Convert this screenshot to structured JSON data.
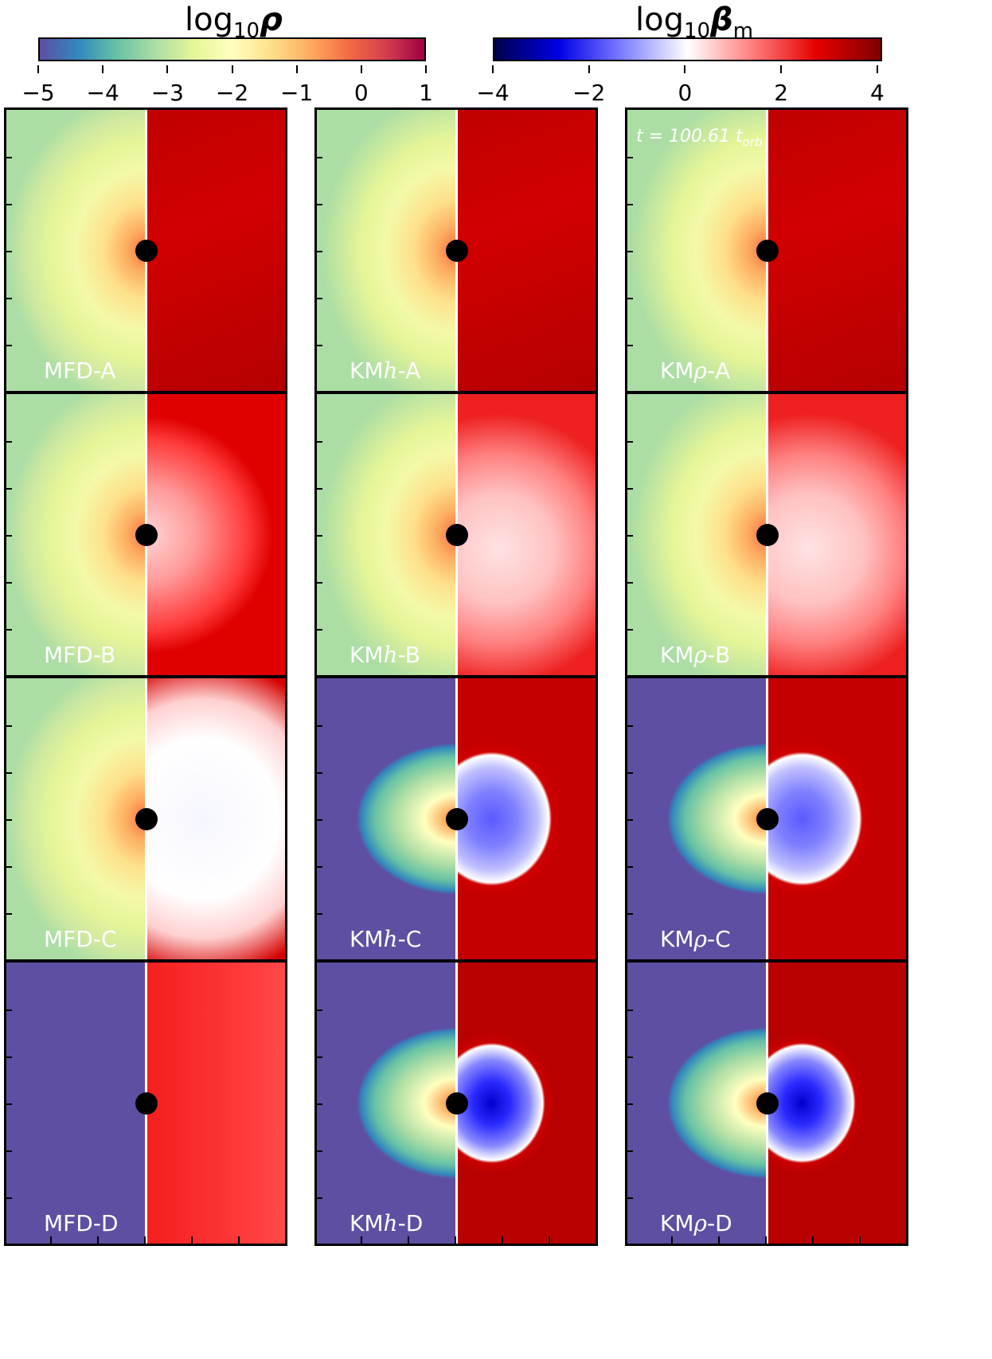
{
  "colorbars": {
    "density": {
      "title_main": "log",
      "title_sub": "10",
      "title_symbol": "ρ",
      "ticks": [
        "−5",
        "−4",
        "−3",
        "−2",
        "−1",
        "0",
        "1"
      ],
      "tick_values": [
        -5,
        -4,
        -3,
        -2,
        -1,
        0,
        1
      ],
      "range": [
        -5,
        1
      ],
      "colormap": "Spectral_r",
      "colors": [
        "#5e4fa2",
        "#3288bd",
        "#66c2a5",
        "#abdda4",
        "#e6f598",
        "#ffffbf",
        "#fee08b",
        "#fdae61",
        "#f46d43",
        "#d53e4f",
        "#9e0142"
      ]
    },
    "beta": {
      "title_main": "log",
      "title_sub": "10",
      "title_symbol": "β",
      "title_symbol_sub": "m",
      "ticks": [
        "−4",
        "−2",
        "0",
        "2",
        "4"
      ],
      "tick_values": [
        -4,
        -2,
        0,
        2,
        4
      ],
      "range": [
        -4,
        4.1
      ],
      "colormap": "seismic",
      "colors": [
        "#00004c",
        "#0000e6",
        "#7f7fff",
        "#ffffff",
        "#ff7f7f",
        "#e60000",
        "#7f0000"
      ]
    }
  },
  "timestamp": {
    "prefix": "t = 100.61 t",
    "sub": "orb"
  },
  "columns": [
    {
      "prefix": "MFD-",
      "italic": ""
    },
    {
      "prefix": "KM",
      "italic": "h"
    },
    {
      "prefix": "KM",
      "italic": "ρ"
    }
  ],
  "rows": [
    "A",
    "B",
    "C",
    "D"
  ],
  "chart_data": {
    "type": "heatmap",
    "panel_grid": [
      [
        {
          "label": "MFD-A",
          "density_state": "extended disk, atmosphere ~-2.5",
          "beta_state": "strongly positive (~3)"
        },
        {
          "label": "KMh-A",
          "density_state": "extended disk, floor outside",
          "beta_state": "positive (~2-3)"
        },
        {
          "label": "KMρ-A",
          "density_state": "extended disk, floor outside",
          "beta_state": "positive (~2-3)"
        }
      ],
      [
        {
          "label": "MFD-B",
          "density_state": "extended disk",
          "beta_state": "positive, ~1 near midplane"
        },
        {
          "label": "KMh-B",
          "density_state": "extended disk",
          "beta_state": "~0.5-1 in disk, ~2 in wind"
        },
        {
          "label": "KMρ-B",
          "density_state": "extended disk",
          "beta_state": "~0.5-1 in disk, ~2 in wind"
        }
      ],
      [
        {
          "label": "MFD-C",
          "density_state": "extended disk",
          "beta_state": "~0 in disk, ~2 in funnel"
        },
        {
          "label": "KMh-C",
          "density_state": "compact torus",
          "beta_state": "negative (~-1.5) in torus, ~2 outside"
        },
        {
          "label": "KMρ-C",
          "density_state": "compact torus",
          "beta_state": "negative (~-1.5) in torus, ~2 outside"
        }
      ],
      [
        {
          "label": "MFD-D",
          "density_state": "floor everywhere",
          "beta_state": "~2"
        },
        {
          "label": "KMh-D",
          "density_state": "compact torus",
          "beta_state": "strongly negative (~-3) in torus, ~2 outside"
        },
        {
          "label": "KMρ-D",
          "density_state": "compact torus",
          "beta_state": "strongly negative (~-3) in torus, ~2 outside"
        }
      ]
    ]
  }
}
